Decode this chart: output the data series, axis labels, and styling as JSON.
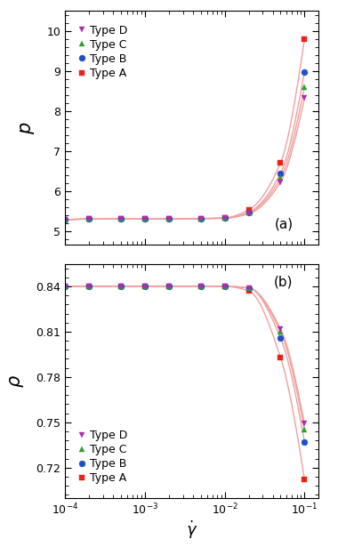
{
  "title_a": "(a)",
  "title_b": "(b)",
  "xlabel": "$\\dot{\\gamma}$",
  "ylabel_a": "$p$",
  "ylabel_b": "$\\rho$",
  "xmin": 0.0001,
  "xmax": 0.15,
  "ylim_a": [
    4.65,
    10.5
  ],
  "ylim_b": [
    0.7,
    0.855
  ],
  "yticks_a": [
    5,
    6,
    7,
    8,
    9,
    10
  ],
  "yticks_b": [
    0.72,
    0.75,
    0.78,
    0.81,
    0.84
  ],
  "colors": {
    "Type A": "#e8231a",
    "Type B": "#1f4fc8",
    "Type C": "#2ea02e",
    "Type D": "#b02ab0"
  },
  "markers": {
    "Type A": "s",
    "Type B": "o",
    "Type C": "^",
    "Type D": "v"
  },
  "x_data": [
    0.0001,
    0.0002,
    0.0005,
    0.001,
    0.002,
    0.005,
    0.01,
    0.02,
    0.05,
    0.1
  ],
  "p_data": {
    "Type A": [
      5.28,
      5.3,
      5.3,
      5.3,
      5.3,
      5.31,
      5.33,
      5.53,
      6.7,
      9.8
    ],
    "Type B": [
      5.28,
      5.3,
      5.3,
      5.3,
      5.3,
      5.31,
      5.32,
      5.47,
      6.44,
      8.98
    ],
    "Type C": [
      5.28,
      5.3,
      5.3,
      5.3,
      5.3,
      5.31,
      5.32,
      5.45,
      6.32,
      8.6
    ],
    "Type D": [
      5.28,
      5.3,
      5.3,
      5.3,
      5.3,
      5.31,
      5.32,
      5.43,
      6.22,
      8.32
    ]
  },
  "rho_data": {
    "Type A": [
      0.84,
      0.84,
      0.84,
      0.84,
      0.84,
      0.84,
      0.84,
      0.837,
      0.793,
      0.712
    ],
    "Type B": [
      0.84,
      0.84,
      0.84,
      0.84,
      0.84,
      0.84,
      0.84,
      0.839,
      0.806,
      0.737
    ],
    "Type C": [
      0.84,
      0.84,
      0.84,
      0.84,
      0.84,
      0.84,
      0.84,
      0.839,
      0.81,
      0.745
    ],
    "Type D": [
      0.84,
      0.84,
      0.84,
      0.84,
      0.84,
      0.84,
      0.84,
      0.839,
      0.812,
      0.749
    ]
  },
  "line_color": "#f0a0a0",
  "line_width": 1.0,
  "marker_size": 5,
  "background_color": "#ffffff",
  "legend_order_a": [
    "Type D",
    "Type C",
    "Type B",
    "Type A"
  ],
  "legend_order_b": [
    "Type D",
    "Type C",
    "Type B",
    "Type A"
  ]
}
